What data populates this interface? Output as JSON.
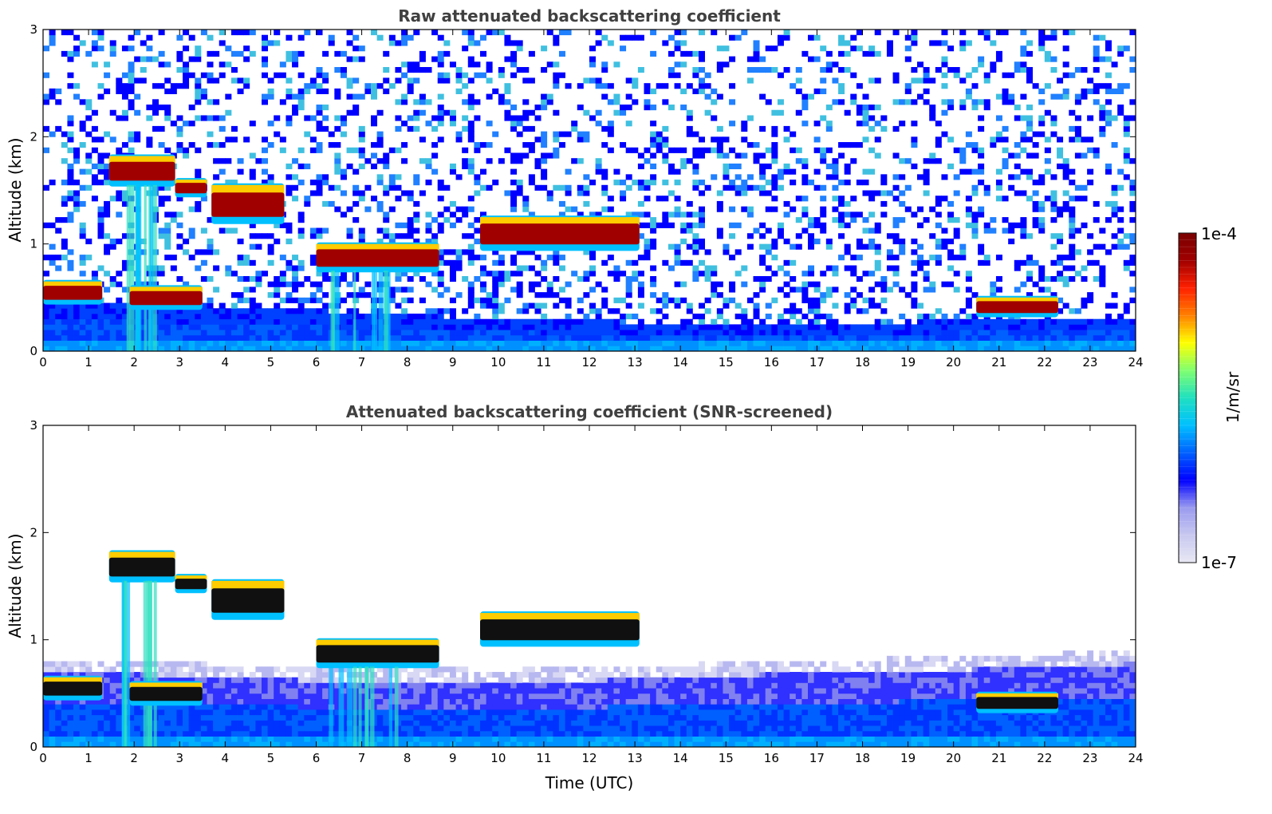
{
  "chart_data": [
    {
      "type": "heatmap",
      "title": "Raw attenuated backscattering coefficient",
      "xlabel": "",
      "ylabel": "Altitude (km)",
      "xlim": [
        0,
        24
      ],
      "ylim": [
        0,
        3
      ],
      "x_ticks": [
        "0",
        "1",
        "2",
        "3",
        "4",
        "5",
        "6",
        "7",
        "8",
        "9",
        "10",
        "11",
        "12",
        "13",
        "14",
        "15",
        "16",
        "17",
        "18",
        "19",
        "20",
        "21",
        "22",
        "23",
        "24"
      ],
      "y_ticks": [
        "0",
        "1",
        "2",
        "3"
      ],
      "screened": false,
      "boundary_layer_top_km": [
        [
          0,
          0.48
        ],
        [
          2,
          0.47
        ],
        [
          4,
          0.42
        ],
        [
          6,
          0.38
        ],
        [
          8,
          0.34
        ],
        [
          10,
          0.3
        ],
        [
          12,
          0.28
        ],
        [
          14,
          0.26
        ],
        [
          16,
          0.24
        ],
        [
          18,
          0.24
        ],
        [
          20,
          0.3
        ],
        [
          24,
          0.32
        ]
      ],
      "cloud_layers": [
        {
          "x_start": 0.0,
          "x_end": 1.3,
          "y_base": 0.45,
          "y_top": 0.65
        },
        {
          "x_start": 1.45,
          "x_end": 2.9,
          "y_base": 1.55,
          "y_top": 1.82
        },
        {
          "x_start": 2.9,
          "x_end": 3.6,
          "y_base": 1.45,
          "y_top": 1.6
        },
        {
          "x_start": 3.7,
          "x_end": 5.3,
          "y_base": 1.2,
          "y_top": 1.55
        },
        {
          "x_start": 1.9,
          "x_end": 3.5,
          "y_base": 0.4,
          "y_top": 0.6
        },
        {
          "x_start": 6.0,
          "x_end": 8.7,
          "y_base": 0.75,
          "y_top": 1.0
        },
        {
          "x_start": 9.6,
          "x_end": 13.1,
          "y_base": 0.95,
          "y_top": 1.25
        },
        {
          "x_start": 20.5,
          "x_end": 22.3,
          "y_base": 0.33,
          "y_top": 0.5
        }
      ]
    },
    {
      "type": "heatmap",
      "title": "Attenuated backscattering coefficient (SNR-screened)",
      "xlabel": "Time (UTC)",
      "ylabel": "Altitude (km)",
      "xlim": [
        0,
        24
      ],
      "ylim": [
        0,
        3
      ],
      "x_ticks": [
        "0",
        "1",
        "2",
        "3",
        "4",
        "5",
        "6",
        "7",
        "8",
        "9",
        "10",
        "11",
        "12",
        "13",
        "14",
        "15",
        "16",
        "17",
        "18",
        "19",
        "20",
        "21",
        "22",
        "23",
        "24"
      ],
      "y_ticks": [
        "0",
        "1",
        "2",
        "3"
      ],
      "screened": true,
      "boundary_layer_top_km": [
        [
          0,
          0.7
        ],
        [
          2,
          0.68
        ],
        [
          4,
          0.65
        ],
        [
          6,
          0.62
        ],
        [
          8,
          0.62
        ],
        [
          10,
          0.6
        ],
        [
          12,
          0.62
        ],
        [
          14,
          0.65
        ],
        [
          16,
          0.68
        ],
        [
          18,
          0.7
        ],
        [
          20,
          0.72
        ],
        [
          24,
          0.78
        ]
      ],
      "cloud_layers": [
        {
          "x_start": 0.0,
          "x_end": 1.3,
          "y_base": 0.45,
          "y_top": 0.65
        },
        {
          "x_start": 1.45,
          "x_end": 2.9,
          "y_base": 1.55,
          "y_top": 1.82
        },
        {
          "x_start": 2.9,
          "x_end": 3.6,
          "y_base": 1.45,
          "y_top": 1.6
        },
        {
          "x_start": 3.7,
          "x_end": 5.3,
          "y_base": 1.2,
          "y_top": 1.55
        },
        {
          "x_start": 1.9,
          "x_end": 3.5,
          "y_base": 0.4,
          "y_top": 0.6
        },
        {
          "x_start": 6.0,
          "x_end": 8.7,
          "y_base": 0.75,
          "y_top": 1.0
        },
        {
          "x_start": 9.6,
          "x_end": 13.1,
          "y_base": 0.95,
          "y_top": 1.25
        },
        {
          "x_start": 20.5,
          "x_end": 22.3,
          "y_base": 0.33,
          "y_top": 0.5
        }
      ]
    }
  ],
  "colorbar": {
    "label": "1/m/sr",
    "max_label": "1e-4",
    "min_label": "1e-7",
    "scale": "log",
    "range": [
      1e-07,
      0.0001
    ],
    "colormap": "jet",
    "colors": [
      "#e8e8f4",
      "#c8c8f0",
      "#9a9af0",
      "#0000ff",
      "#0060ff",
      "#00c0ff",
      "#20e0c0",
      "#80ff70",
      "#ffff00",
      "#ff8000",
      "#ff2000",
      "#a00000",
      "#7a0000"
    ]
  }
}
